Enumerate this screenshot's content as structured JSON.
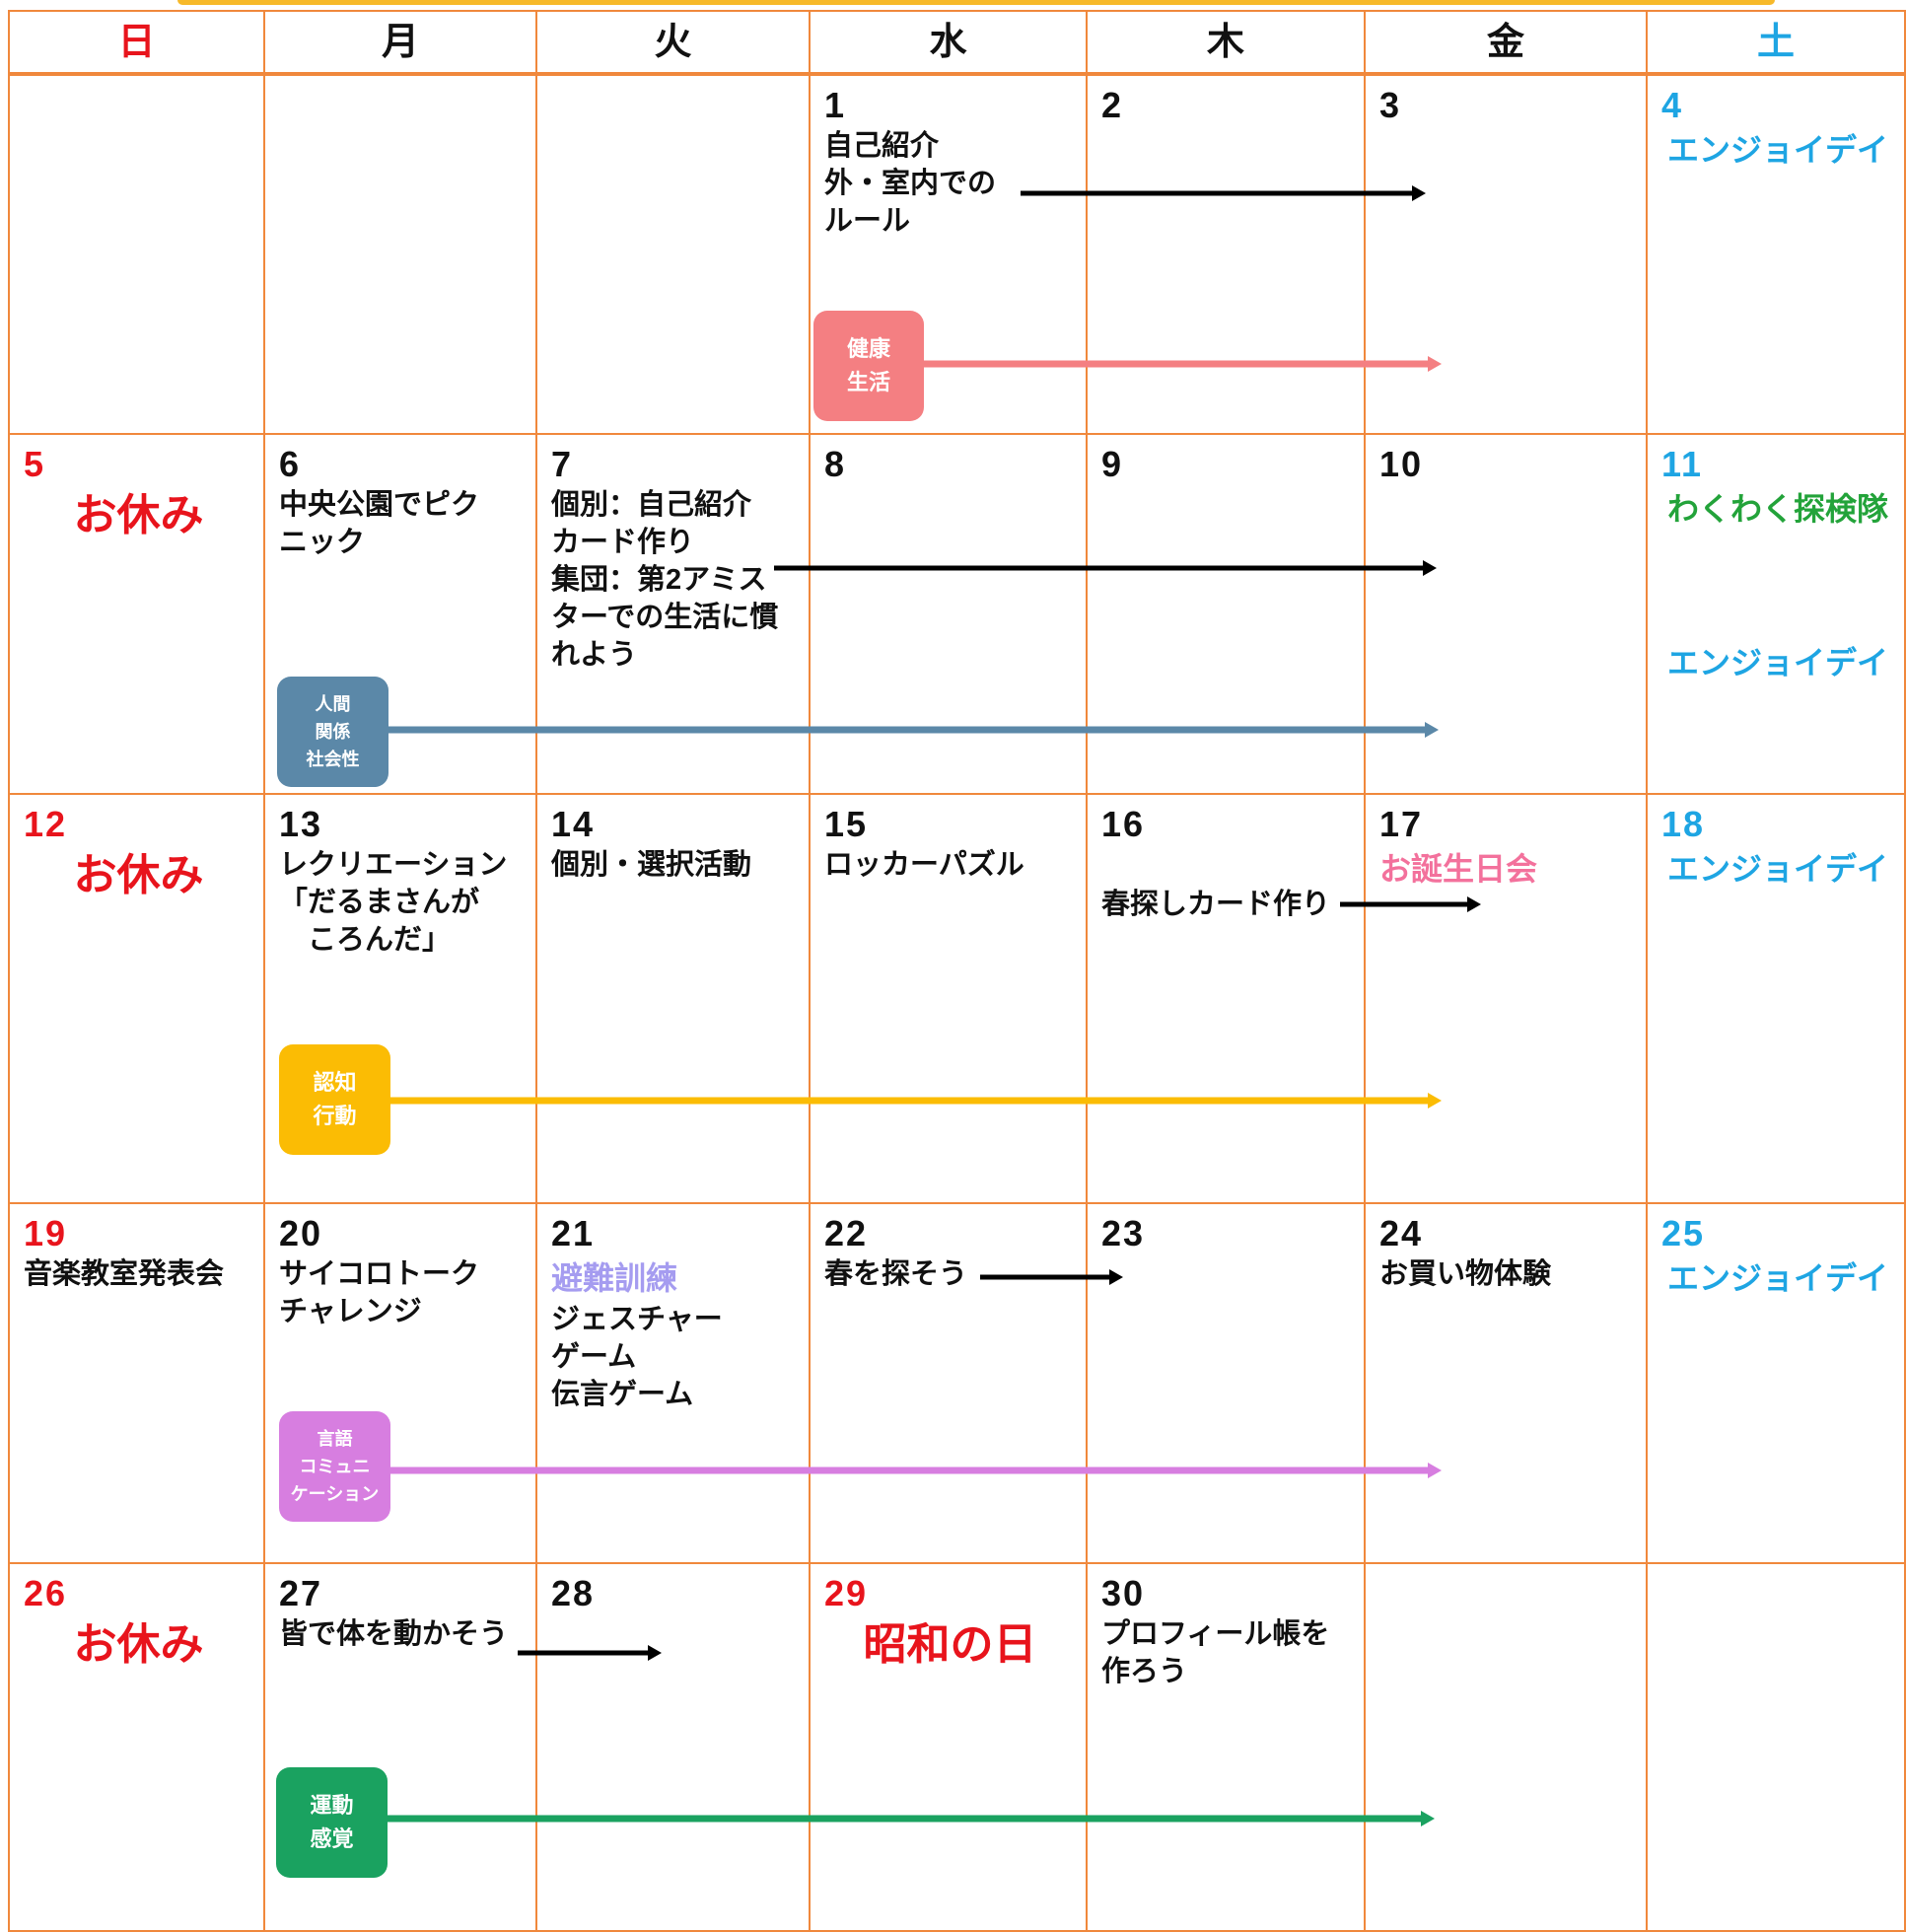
{
  "weekdays": [
    "日",
    "月",
    "火",
    "水",
    "木",
    "金",
    "土"
  ],
  "weeks": [
    {
      "cells": [
        {},
        {},
        {},
        {
          "day": "1",
          "lines": [
            "自己紹介",
            "外・室内での",
            "ルール"
          ]
        },
        {
          "day": "2"
        },
        {
          "day": "3"
        },
        {
          "day": "4",
          "specials": [
            {
              "text": "エンジョイデイ",
              "color": "#1ea5e3"
            }
          ]
        }
      ],
      "tag": {
        "lines": [
          "健康",
          "生活"
        ],
        "color": "#f47f82"
      }
    },
    {
      "cells": [
        {
          "day": "5",
          "holiday": "お休み"
        },
        {
          "day": "6",
          "lines": [
            "中央公園でピク",
            "ニック"
          ]
        },
        {
          "day": "7",
          "lines": [
            "個別：自己紹介",
            "カード作り",
            "集団：第2アミス",
            "ターでの生活に慣",
            "れよう"
          ]
        },
        {
          "day": "8"
        },
        {
          "day": "9"
        },
        {
          "day": "10"
        },
        {
          "day": "11",
          "specials": [
            {
              "text": "わくわく探検隊",
              "color": "#23a33a"
            },
            {
              "text": "エンジョイデイ",
              "color": "#1ea5e3"
            }
          ]
        }
      ],
      "tag": {
        "lines": [
          "人間",
          "関係",
          "社会性"
        ],
        "color": "#5b88a8"
      }
    },
    {
      "cells": [
        {
          "day": "12",
          "holiday": "お休み"
        },
        {
          "day": "13",
          "lines": [
            "レクリエーション",
            "「だるまさんが",
            "　ころんだ」"
          ]
        },
        {
          "day": "14",
          "lines": [
            "個別・選択活動"
          ]
        },
        {
          "day": "15",
          "lines": [
            "ロッカーパズル"
          ]
        },
        {
          "day": "16",
          "lines": [
            "春探しカード作り"
          ]
        },
        {
          "day": "17",
          "specials": [
            {
              "text": "お誕生日会",
              "color": "#f3719c"
            }
          ]
        },
        {
          "day": "18",
          "specials": [
            {
              "text": "エンジョイデイ",
              "color": "#1ea5e3"
            }
          ]
        }
      ],
      "tag": {
        "lines": [
          "認知",
          "行動"
        ],
        "color": "#fbbc04"
      }
    },
    {
      "cells": [
        {
          "day": "19",
          "lines": [
            "音楽教室発表会"
          ]
        },
        {
          "day": "20",
          "lines": [
            "サイコロトーク",
            "チャレンジ"
          ]
        },
        {
          "day": "21",
          "specials": [
            {
              "text": "避難訓練",
              "color": "#a59cf0"
            }
          ],
          "lines": [
            "ジェスチャー",
            "ゲーム",
            "伝言ゲーム"
          ]
        },
        {
          "day": "22",
          "lines": [
            "春を探そう"
          ]
        },
        {
          "day": "23"
        },
        {
          "day": "24",
          "lines": [
            "お買い物体験"
          ]
        },
        {
          "day": "25",
          "specials": [
            {
              "text": "エンジョイデイ",
              "color": "#1ea5e3"
            }
          ]
        }
      ],
      "tag": {
        "lines": [
          "言語",
          "コミュニ",
          "ケーション"
        ],
        "color": "#d77ee0"
      }
    },
    {
      "cells": [
        {
          "day": "26",
          "holiday": "お休み"
        },
        {
          "day": "27",
          "lines": [
            "皆で体を動かそう"
          ]
        },
        {
          "day": "28"
        },
        {
          "day": "29",
          "holiday": "昭和の日"
        },
        {
          "day": "30",
          "lines": [
            "プロフィール帳を",
            "作ろう"
          ]
        },
        {},
        {}
      ],
      "tag": {
        "lines": [
          "運動",
          "感覚"
        ],
        "color": "#1aa260"
      }
    }
  ]
}
